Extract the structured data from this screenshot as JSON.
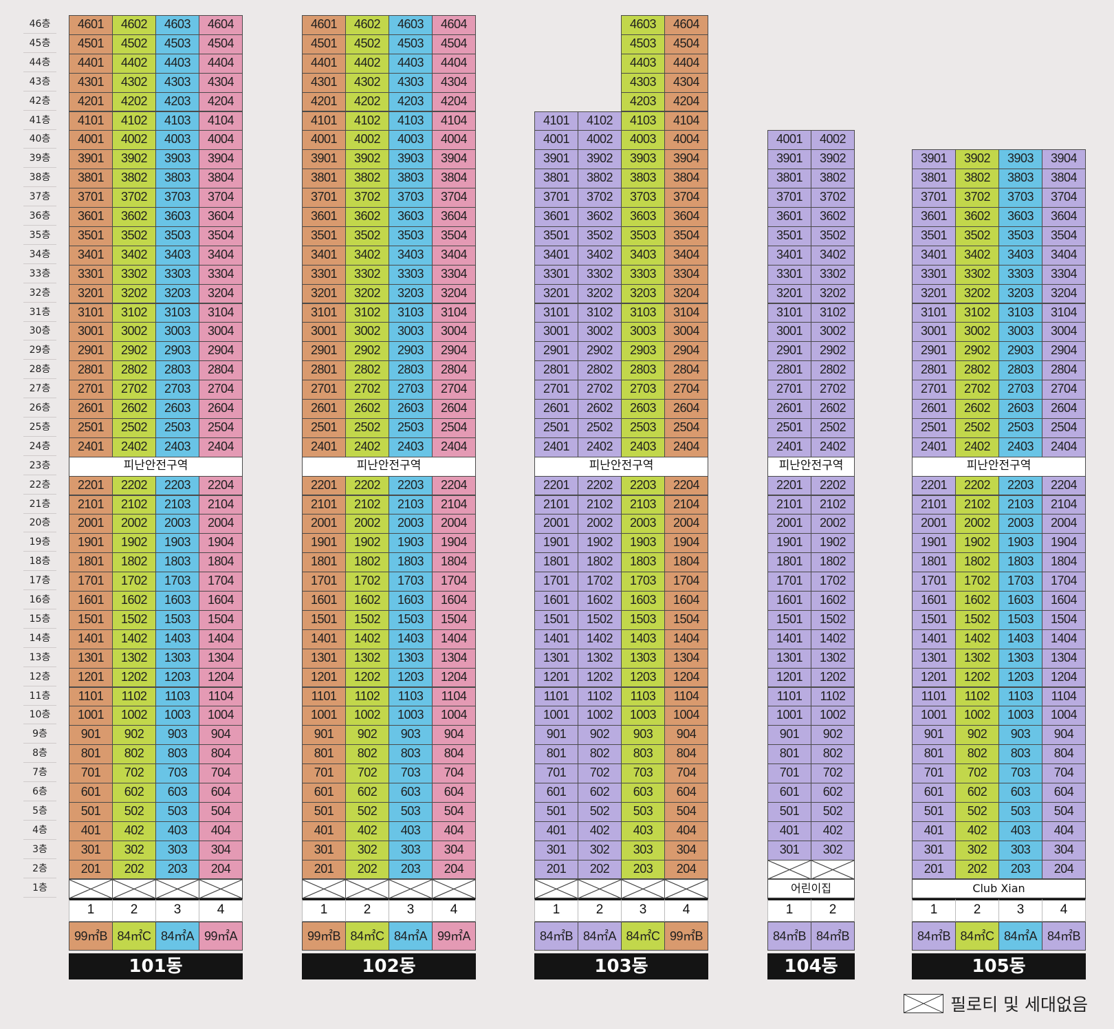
{
  "floors": {
    "top": 46,
    "suffix": "층"
  },
  "refuge_label": "피난안전구역",
  "refuge_floor": 23,
  "colors": {
    "orange": "#d99a6e",
    "green": "#c2d74b",
    "blue": "#69c4e6",
    "pink": "#e49ab4",
    "lavender": "#b9ace0"
  },
  "buildings": [
    {
      "name": "101동",
      "lines": [
        {
          "num": "1",
          "type": "99㎡B",
          "color": "orange",
          "top": 46
        },
        {
          "num": "2",
          "type": "84㎡C",
          "color": "green",
          "top": 46
        },
        {
          "num": "3",
          "type": "84㎡A",
          "color": "blue",
          "top": 46
        },
        {
          "num": "4",
          "type": "99㎡A",
          "color": "pink",
          "top": 46
        }
      ],
      "lowest": 2,
      "ground": "pilotis",
      "lavender_above": null
    },
    {
      "name": "102동",
      "lines": [
        {
          "num": "1",
          "type": "99㎡B",
          "color": "orange",
          "top": 46
        },
        {
          "num": "2",
          "type": "84㎡C",
          "color": "green",
          "top": 46
        },
        {
          "num": "3",
          "type": "84㎡A",
          "color": "blue",
          "top": 46
        },
        {
          "num": "4",
          "type": "99㎡A",
          "color": "pink",
          "top": 46
        }
      ],
      "lowest": 2,
      "ground": "pilotis",
      "lavender_above": null
    },
    {
      "name": "103동",
      "lines": [
        {
          "num": "1",
          "type": "84㎡B",
          "color": "lavender",
          "top": 41
        },
        {
          "num": "2",
          "type": "84㎡A",
          "color": "lavender",
          "top": 41
        },
        {
          "num": "3",
          "type": "84㎡C",
          "color": "green",
          "top": 46
        },
        {
          "num": "4",
          "type": "99㎡B",
          "color": "orange",
          "top": 46
        }
      ],
      "lowest": 2,
      "ground": "pilotis",
      "lavender_above": 2
    },
    {
      "name": "104동",
      "lines": [
        {
          "num": "1",
          "type": "84㎡B",
          "color": "lavender",
          "top": 40
        },
        {
          "num": "2",
          "type": "84㎡B",
          "color": "lavender",
          "top": 40
        }
      ],
      "lowest": 3,
      "ground": "어린이집",
      "lavender_above": null
    },
    {
      "name": "105동",
      "lines": [
        {
          "num": "1",
          "type": "84㎡B",
          "color": "lavender",
          "top": 39
        },
        {
          "num": "2",
          "type": "84㎡C",
          "color": "green",
          "top": 39
        },
        {
          "num": "3",
          "type": "84㎡A",
          "color": "blue",
          "top": 39
        },
        {
          "num": "4",
          "type": "84㎡B",
          "color": "lavender",
          "top": 39
        }
      ],
      "lowest": 2,
      "ground": "Club Xian",
      "lavender_above": null
    }
  ],
  "legend": {
    "label": "필로티 및 세대없음"
  }
}
